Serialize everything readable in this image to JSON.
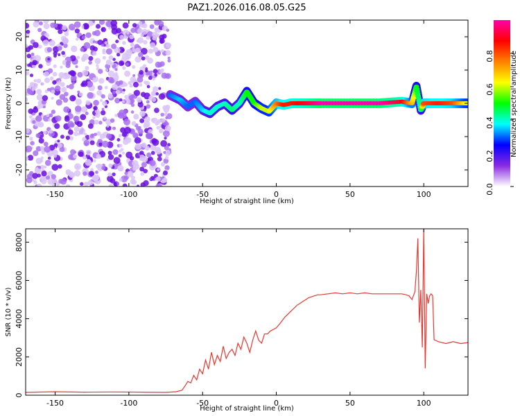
{
  "title": "PAZ1.2026.016.08.05.G25",
  "chart_data": [
    {
      "type": "heatmap",
      "title": "PAZ1.2026.016.08.05.G25",
      "xlabel": "Height of straight line (km)",
      "ylabel": "Frequency (Hz)",
      "xlim": [
        -170,
        130
      ],
      "ylim": [
        -25,
        25
      ],
      "xticks": [
        "-150",
        "-100",
        "-50",
        "0",
        "50",
        "100"
      ],
      "yticks": [
        "-20",
        "-10",
        "0",
        "10",
        "20"
      ],
      "colorbar": {
        "label": "Normalized spectral amplitude",
        "range": [
          0,
          1
        ],
        "ticks": [
          "0.0",
          "0.2",
          "0.4",
          "0.6",
          "0.8"
        ],
        "colors": [
          "#ffffff",
          "#8a2be2",
          "#0000ff",
          "#00ffff",
          "#00ff00",
          "#ffff00",
          "#ff8000",
          "#ff0000",
          "#ff00aa"
        ]
      },
      "noise_region": {
        "x": [
          -170,
          -72
        ],
        "amplitude": 0.1
      },
      "ridge": {
        "x": [
          -72,
          -65,
          -60,
          -55,
          -50,
          -45,
          -40,
          -35,
          -30,
          -25,
          -20,
          -15,
          -10,
          -5,
          0,
          5,
          10,
          20,
          30,
          50,
          70,
          85,
          92,
          95,
          98,
          100,
          110,
          120,
          130
        ],
        "frequency": [
          2.5,
          1,
          -1,
          0.5,
          -2,
          -3,
          -1,
          0,
          -2,
          0,
          3.5,
          0,
          -1.5,
          -2.5,
          0,
          -0.5,
          0,
          0,
          0,
          0,
          0,
          0.5,
          0,
          5,
          -2,
          0,
          0,
          0,
          0
        ],
        "amplitude": [
          0.3,
          0.35,
          0.3,
          0.3,
          0.35,
          0.4,
          0.4,
          0.4,
          0.45,
          0.4,
          0.5,
          0.5,
          0.6,
          0.6,
          0.75,
          0.85,
          0.85,
          0.9,
          1.0,
          1.0,
          1.0,
          0.9,
          0.7,
          0.5,
          0.4,
          0.8,
          0.85,
          0.8,
          0.6
        ]
      }
    },
    {
      "type": "line",
      "xlabel": "Height of straight line (km)",
      "ylabel": "SNR (10 * v/v)",
      "xlim": [
        -170,
        130
      ],
      "ylim": [
        0,
        8700
      ],
      "xticks": [
        "-150",
        "-100",
        "-50",
        "0",
        "50",
        "100"
      ],
      "yticks": [
        "0",
        "2000",
        "4000",
        "6000",
        "8000"
      ],
      "color": "#e8352e",
      "series": [
        {
          "x": [
            -170,
            -150,
            -130,
            -110,
            -90,
            -75,
            -68,
            -64,
            -62,
            -60,
            -58,
            -56,
            -54,
            -52,
            -50,
            -48,
            -46,
            -44,
            -42,
            -40,
            -38,
            -36,
            -34,
            -32,
            -30,
            -28,
            -26,
            -24,
            -22,
            -20,
            -18,
            -16,
            -14,
            -12,
            -10,
            -8,
            -6,
            -4,
            -2,
            0,
            2,
            4,
            6,
            8,
            10,
            12,
            14,
            16,
            18,
            20,
            22,
            24,
            26,
            28,
            30,
            35,
            40,
            45,
            50,
            55,
            60,
            65,
            70,
            75,
            80,
            85,
            88,
            90,
            92,
            94,
            95,
            96,
            97,
            98,
            99,
            100,
            101,
            102,
            103,
            104,
            105,
            106,
            107,
            110,
            115,
            120,
            125,
            130
          ],
          "y": [
            150,
            180,
            160,
            170,
            160,
            150,
            180,
            260,
            480,
            720,
            640,
            1040,
            800,
            1360,
            1120,
            1840,
            1360,
            2240,
            1600,
            2080,
            1760,
            2560,
            1920,
            2240,
            2400,
            2080,
            2720,
            2400,
            3040,
            2720,
            2240,
            2880,
            3360,
            2880,
            2720,
            3200,
            3200,
            3360,
            3440,
            3520,
            3700,
            3900,
            4100,
            4250,
            4400,
            4550,
            4700,
            4800,
            4900,
            5000,
            5100,
            5150,
            5200,
            5250,
            5250,
            5300,
            5350,
            5300,
            5350,
            5300,
            5350,
            5300,
            5300,
            5300,
            5300,
            5300,
            5250,
            5200,
            5000,
            5400,
            6500,
            8200,
            3800,
            5500,
            2500,
            8700,
            1400,
            5300,
            4800,
            5200,
            5300,
            5200,
            2900,
            2800,
            2700,
            2800,
            2700,
            2750
          ]
        }
      ]
    }
  ]
}
